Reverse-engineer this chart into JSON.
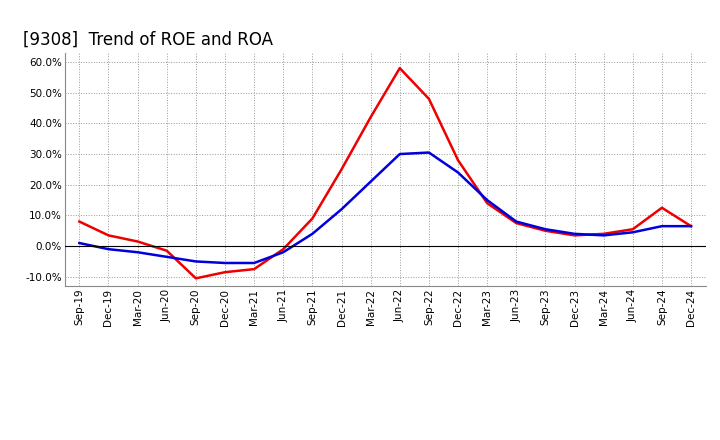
{
  "title": "[9308]  Trend of ROE and ROA",
  "labels": [
    "Sep-19",
    "Dec-19",
    "Mar-20",
    "Jun-20",
    "Sep-20",
    "Dec-20",
    "Mar-21",
    "Jun-21",
    "Sep-21",
    "Dec-21",
    "Mar-22",
    "Jun-22",
    "Sep-22",
    "Dec-22",
    "Mar-23",
    "Jun-23",
    "Sep-23",
    "Dec-23",
    "Mar-24",
    "Jun-24",
    "Sep-24",
    "Dec-24"
  ],
  "ROE": [
    8.0,
    3.5,
    1.5,
    -1.5,
    -10.5,
    -8.5,
    -7.5,
    -1.0,
    9.0,
    25.0,
    42.0,
    58.0,
    48.0,
    28.0,
    14.0,
    7.5,
    5.0,
    3.5,
    4.0,
    5.5,
    12.5,
    6.5
  ],
  "ROA": [
    1.0,
    -1.0,
    -2.0,
    -3.5,
    -5.0,
    -5.5,
    -5.5,
    -2.0,
    4.0,
    12.0,
    21.0,
    30.0,
    30.5,
    24.0,
    15.0,
    8.0,
    5.5,
    4.0,
    3.5,
    4.5,
    6.5,
    6.5
  ],
  "roe_color": "#ee0000",
  "roa_color": "#0000dd",
  "ylim": [
    -13,
    63
  ],
  "yticks": [
    -10.0,
    0.0,
    10.0,
    20.0,
    30.0,
    40.0,
    50.0,
    60.0
  ],
  "background_color": "#ffffff",
  "grid_color": "#999999",
  "line_width": 1.8,
  "title_fontsize": 12,
  "tick_fontsize": 7.5,
  "legend_fontsize": 10
}
